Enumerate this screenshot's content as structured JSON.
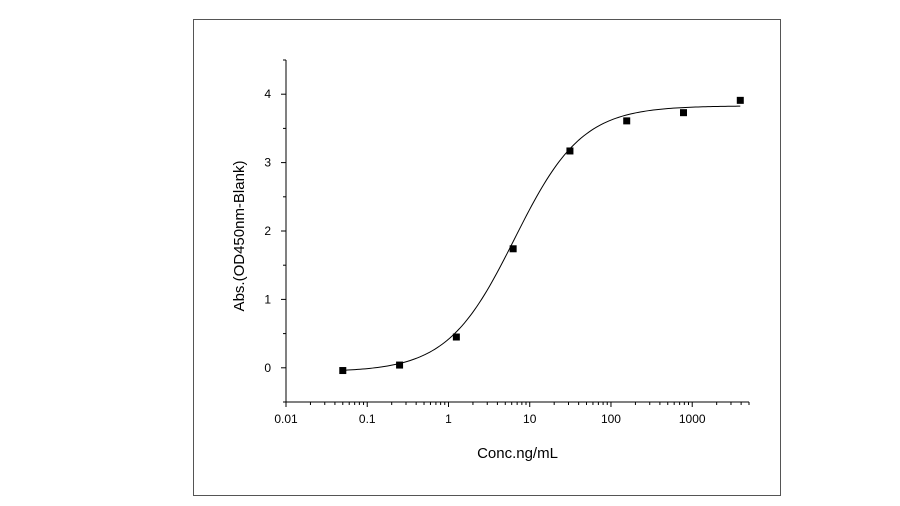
{
  "chart_data": {
    "type": "scatter",
    "xlabel": "Conc.ng/mL",
    "ylabel": "Abs.(OD450nm-Blank)",
    "x_scale": "log",
    "xlim": [
      0.01,
      5000
    ],
    "ylim": [
      -0.5,
      4.5
    ],
    "x_ticks": [
      {
        "value": 0.01,
        "label": "0.01"
      },
      {
        "value": 0.1,
        "label": "0.1"
      },
      {
        "value": 1,
        "label": "1"
      },
      {
        "value": 10,
        "label": "10"
      },
      {
        "value": 100,
        "label": "100"
      },
      {
        "value": 1000,
        "label": "1000"
      }
    ],
    "y_ticks": [
      {
        "value": 0,
        "label": "0"
      },
      {
        "value": 1,
        "label": "1"
      },
      {
        "value": 2,
        "label": "2"
      },
      {
        "value": 3,
        "label": "3"
      },
      {
        "value": 4,
        "label": "4"
      }
    ],
    "series": [
      {
        "marker": "square",
        "color": "#000000",
        "x": [
          0.05,
          0.25,
          1.25,
          6.25,
          31.25,
          156.25,
          781.25,
          3906.25
        ],
        "y": [
          -0.04,
          0.04,
          0.45,
          1.74,
          3.17,
          3.61,
          3.73,
          3.91
        ]
      }
    ],
    "fit_curve": {
      "type": "4PL",
      "color": "#000000",
      "bottom": -0.06,
      "top": 3.83,
      "ec50": 6.5,
      "hill": 1.05
    },
    "grid": false,
    "legend": "none"
  }
}
